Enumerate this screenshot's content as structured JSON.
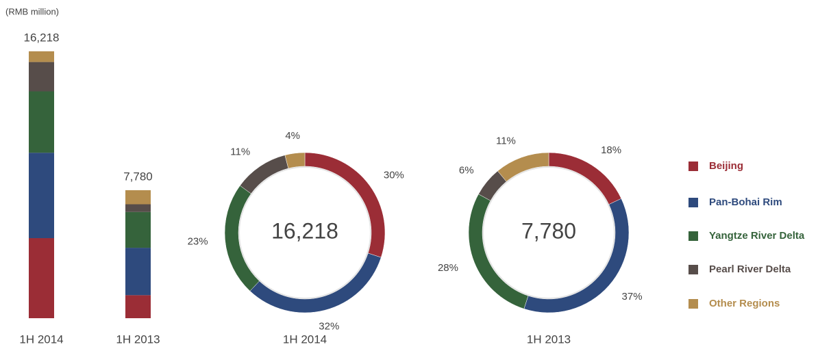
{
  "chart_data": [
    {
      "type": "bar",
      "stacked": true,
      "unit_label": "(RMB million)",
      "categories": [
        "1H 2014",
        "1H 2013"
      ],
      "series": [
        {
          "name": "Beijing",
          "color": "#9b2d36",
          "values": [
            4865,
            1400
          ]
        },
        {
          "name": "Pan-Bohai Rim",
          "color": "#2e4a7d",
          "values": [
            5190,
            2879
          ]
        },
        {
          "name": "Yangtze River Delta",
          "color": "#35633b",
          "values": [
            3730,
            2178
          ]
        },
        {
          "name": "Pearl River Delta",
          "color": "#574d4a",
          "values": [
            1784,
            467
          ]
        },
        {
          "name": "Other Regions",
          "color": "#b48d4e",
          "values": [
            649,
            856
          ]
        }
      ],
      "totals": [
        16218,
        7780
      ],
      "total_labels": [
        "16,218",
        "7,780"
      ],
      "legend": "right"
    },
    {
      "type": "pie",
      "donut": true,
      "title": "1H 2014",
      "center_label": "16,218",
      "values": [
        30,
        32,
        23,
        11,
        4
      ],
      "value_labels": [
        "30%",
        "32%",
        "23%",
        "11%",
        "4%"
      ],
      "colors": [
        "#9b2d36",
        "#2e4a7d",
        "#35633b",
        "#574d4a",
        "#b48d4e"
      ]
    },
    {
      "type": "pie",
      "donut": true,
      "title": "1H 2013",
      "center_label": "7,780",
      "values": [
        18,
        37,
        28,
        6,
        11
      ],
      "value_labels": [
        "18%",
        "37%",
        "28%",
        "6%",
        "11%"
      ],
      "colors": [
        "#9b2d36",
        "#2e4a7d",
        "#35633b",
        "#574d4a",
        "#b48d4e"
      ]
    }
  ]
}
